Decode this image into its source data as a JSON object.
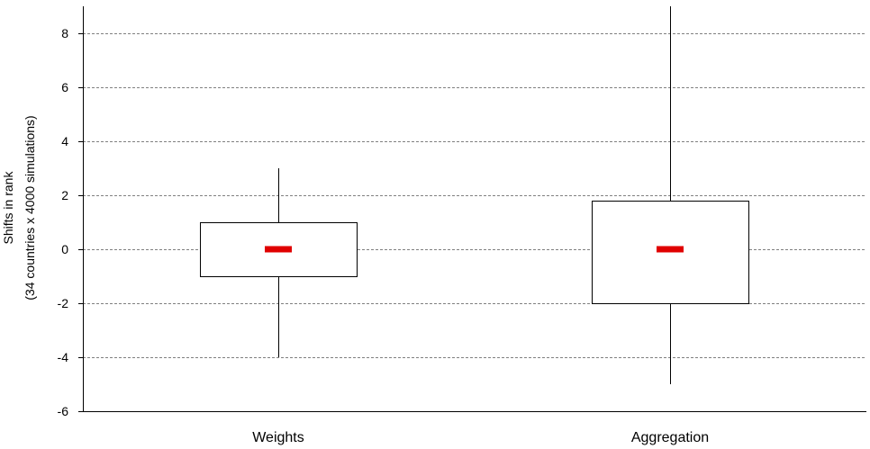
{
  "chart_data": {
    "type": "box",
    "title": "",
    "xlabel": "",
    "ylabel": [
      "Shifts in rank",
      "(34 countries x 4000  simulations)"
    ],
    "ylim": [
      -6,
      9
    ],
    "yticks": [
      -6,
      -4,
      -2,
      0,
      2,
      4,
      6,
      8
    ],
    "grid": "horizontal dashed",
    "categories": [
      "Weights",
      "Aggregation"
    ],
    "boxes": [
      {
        "category": "Weights",
        "whisker_low": -4,
        "q1": -1,
        "median": 0,
        "q3": 1,
        "whisker_high": 3
      },
      {
        "category": "Aggregation",
        "whisker_low": -5,
        "q1": -2,
        "median": 0,
        "q3": 1.8,
        "whisker_high": 9
      }
    ],
    "colors": {
      "median": "#e00000",
      "box_stroke": "#000000",
      "grid": "#808080",
      "axis": "#000000"
    }
  }
}
